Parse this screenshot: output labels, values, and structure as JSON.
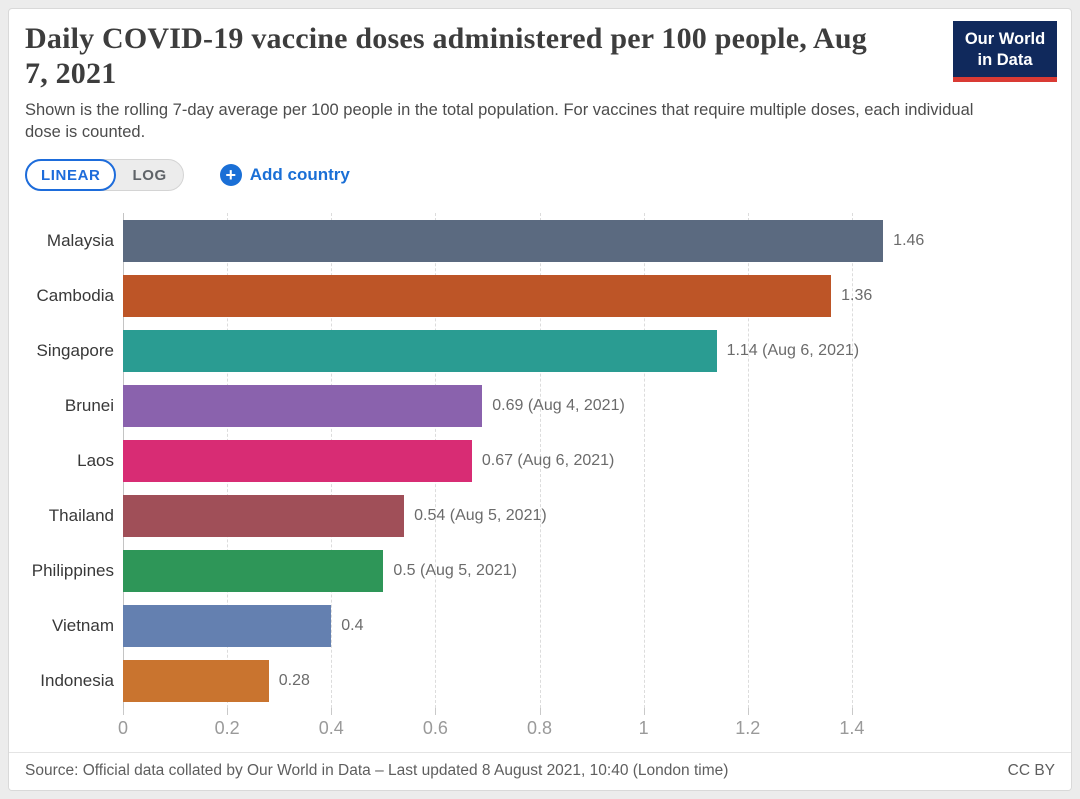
{
  "header": {
    "title": "Daily COVID-19 vaccine doses administered per 100 people, Aug 7, 2021",
    "subtitle": "Shown is the rolling 7-day average per 100 people in the total population. For vaccines that require multiple doses, each individual dose is counted.",
    "logo": {
      "line1": "Our World",
      "line2": "in Data",
      "bg_color": "#10295c",
      "accent_color": "#d93a34"
    }
  },
  "controls": {
    "linear_label": "LINEAR",
    "log_label": "LOG",
    "add_country_label": "Add country",
    "accent_color": "#1a6fd6"
  },
  "chart_data": {
    "type": "bar",
    "orientation": "horizontal",
    "title": "Daily COVID-19 vaccine doses administered per 100 people, Aug 7, 2021",
    "xlabel": "",
    "ylabel": "",
    "categories": [
      "Malaysia",
      "Cambodia",
      "Singapore",
      "Brunei",
      "Laos",
      "Thailand",
      "Philippines",
      "Vietnam",
      "Indonesia"
    ],
    "values": [
      1.46,
      1.36,
      1.14,
      0.69,
      0.67,
      0.54,
      0.5,
      0.4,
      0.28
    ],
    "value_labels": [
      "1.46",
      "1.36",
      "1.14 (Aug 6, 2021)",
      "0.69 (Aug 4, 2021)",
      "0.67 (Aug 6, 2021)",
      "0.54 (Aug 5, 2021)",
      "0.5 (Aug 5, 2021)",
      "0.4",
      "0.28"
    ],
    "bar_colors": [
      "#5b6a80",
      "#bd5527",
      "#2a9c92",
      "#8a62ad",
      "#d82c74",
      "#a04f58",
      "#2e9658",
      "#6480b0",
      "#c9742f"
    ],
    "x_ticks": [
      "0",
      "0.2",
      "0.4",
      "0.6",
      "0.8",
      "1",
      "1.2",
      "1.4"
    ],
    "x_tick_values": [
      0,
      0.2,
      0.4,
      0.6,
      0.8,
      1,
      1.2,
      1.4
    ],
    "xlim": [
      0,
      1.79
    ],
    "grid": "dashed-vertical",
    "legend": "none"
  },
  "footer": {
    "source": "Source: Official data collated by Our World in Data – Last updated 8 August 2021, 10:40 (London time)",
    "license": "CC BY"
  }
}
